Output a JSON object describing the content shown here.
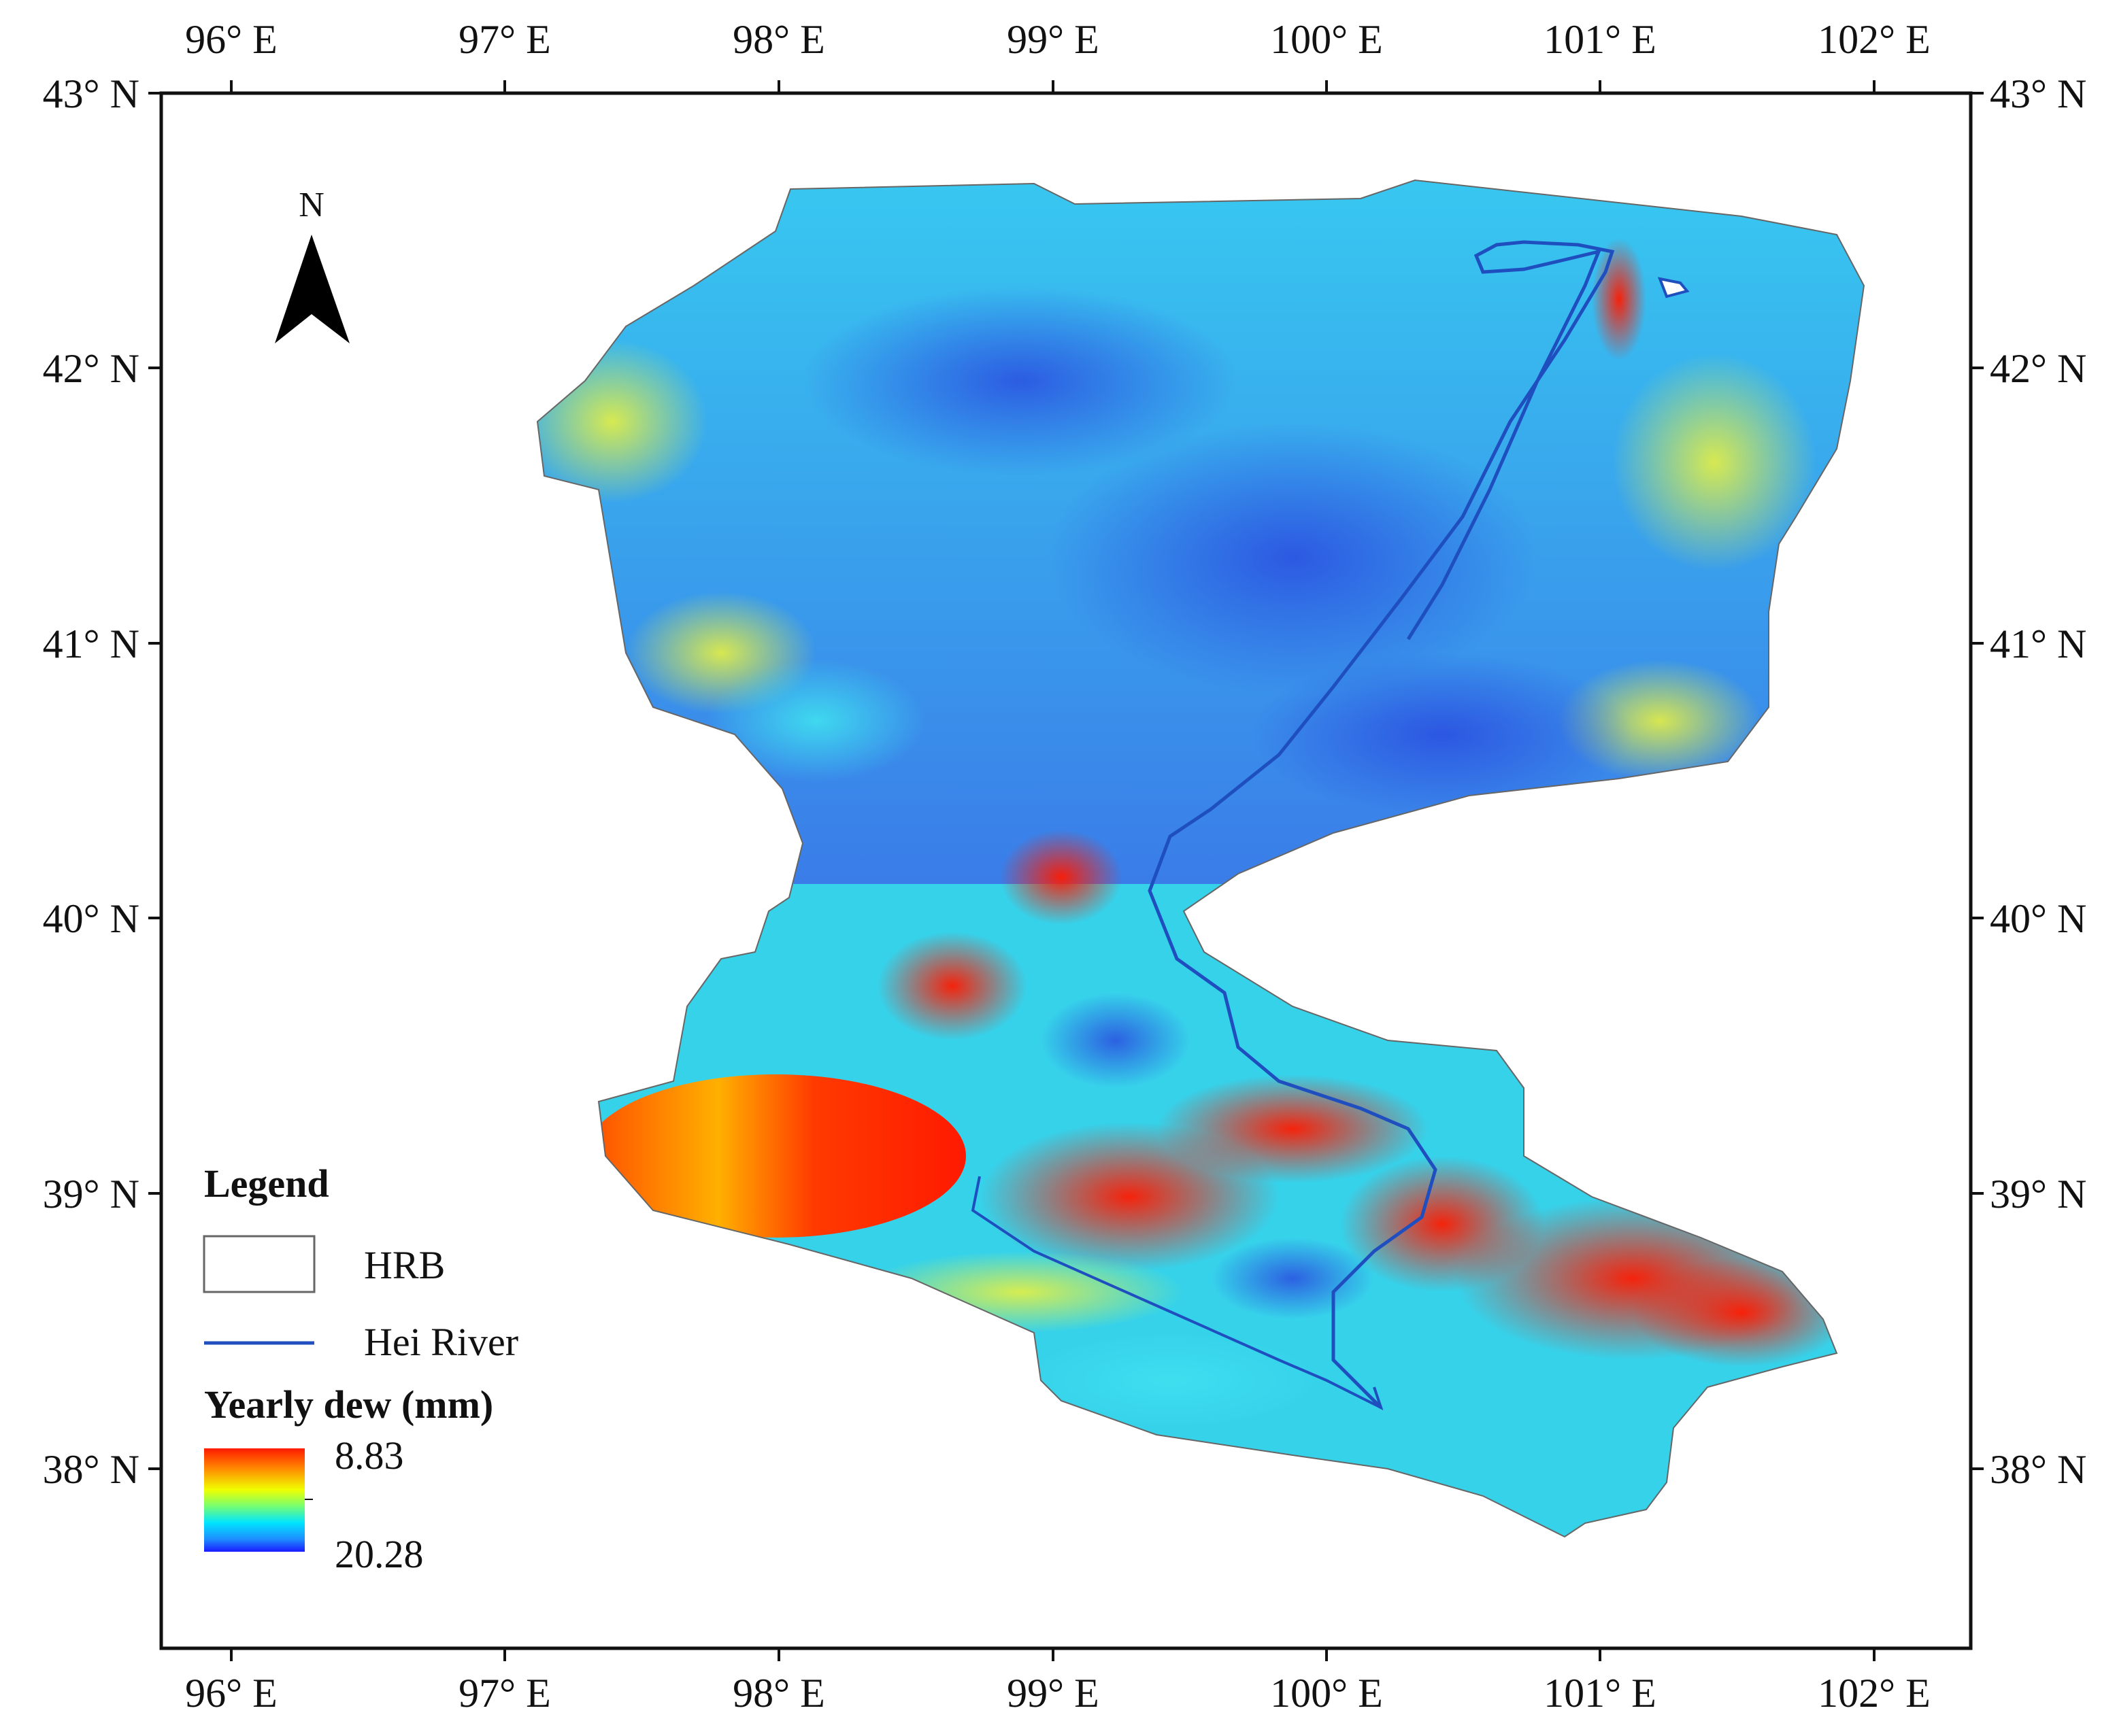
{
  "map": {
    "lon_ticks": [
      "96° E",
      "97° E",
      "98° E",
      "99° E",
      "100° E",
      "101° E",
      "102° E"
    ],
    "lat_ticks": [
      "43° N",
      "42° N",
      "41° N",
      "40° N",
      "39° N",
      "38° N"
    ],
    "north_arrow": "N",
    "colors": {
      "frame": "#111111",
      "river": "#1f4fbf",
      "high": "#ff1a00",
      "low": "#1a3cff"
    }
  },
  "legend": {
    "title": "Legend",
    "hrb_label": "HRB",
    "river_label": "Hei River",
    "scale_title": "Yearly dew (mm)",
    "scale_top": "8.83",
    "scale_bottom": "20.28"
  }
}
